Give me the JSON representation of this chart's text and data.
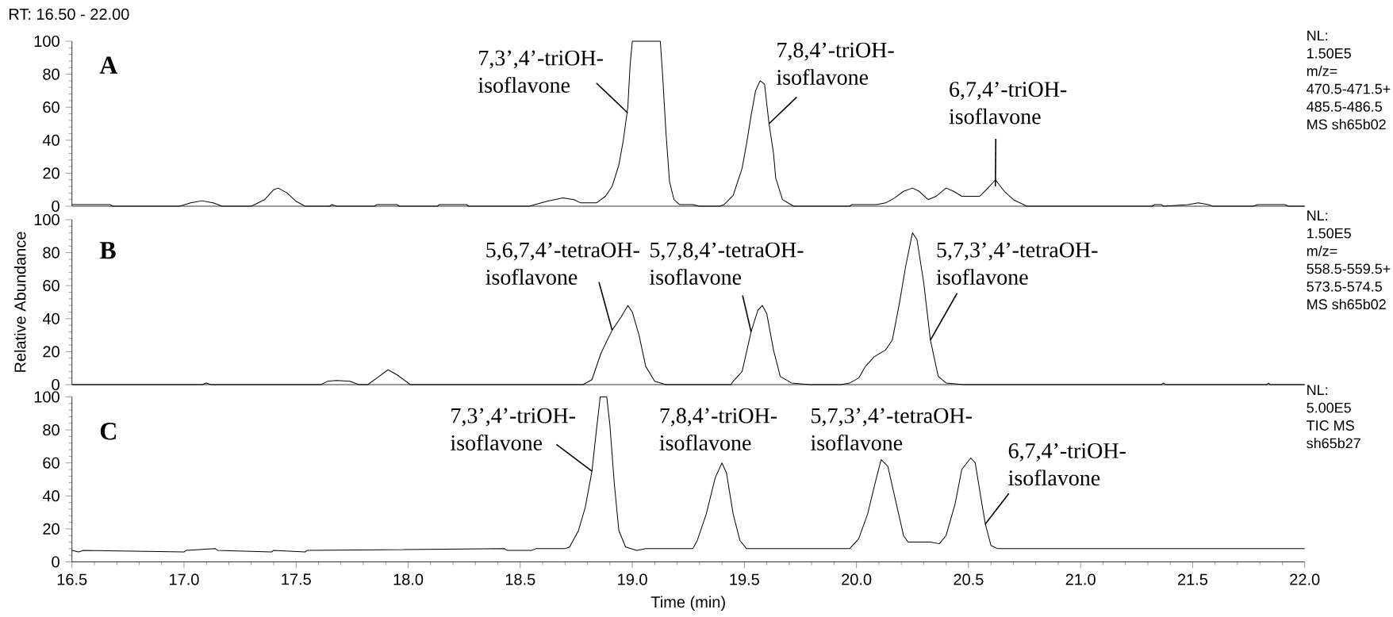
{
  "chart_data": [
    {
      "type": "line",
      "title": "A",
      "color": "#000000",
      "line_style": "solid",
      "tick_labels": "y",
      "x": [
        16.5,
        16.67,
        16.68,
        16.98,
        17.03,
        17.08,
        17.13,
        17.17,
        17.3,
        17.36,
        17.4,
        17.42,
        17.46,
        17.5,
        17.54,
        17.65,
        17.66,
        17.68,
        17.85,
        17.86,
        17.95,
        17.96,
        18.13,
        18.14,
        18.26,
        18.27,
        18.54,
        18.62,
        18.69,
        18.74,
        18.77,
        18.84,
        18.88,
        18.91,
        18.94,
        18.96,
        18.98,
        18.99,
        19.0,
        19.125,
        19.135,
        19.15,
        19.166,
        19.186,
        19.21,
        19.27,
        19.3,
        19.39,
        19.41,
        19.45,
        19.49,
        19.51,
        19.53,
        19.55,
        19.57,
        19.59,
        19.6,
        19.61,
        19.63,
        19.64,
        19.67,
        19.72,
        19.97,
        19.98,
        20.09,
        20.13,
        20.17,
        20.21,
        20.25,
        20.28,
        20.32,
        20.355,
        20.4,
        20.434,
        20.47,
        20.55,
        20.58,
        20.62,
        20.66,
        20.7,
        20.76,
        21.32,
        21.33,
        21.36,
        21.37,
        21.48,
        21.525,
        21.57,
        21.59,
        21.77,
        21.79,
        21.91,
        21.93,
        22.0
      ],
      "values": [
        1,
        1,
        0,
        0,
        2,
        3.3,
        2,
        0,
        0,
        4,
        10,
        11,
        8,
        3,
        0,
        0,
        1,
        0,
        0,
        1,
        1,
        0,
        0,
        1,
        1,
        0,
        0,
        3,
        5,
        4,
        2,
        2,
        6,
        12,
        25,
        40,
        60,
        85,
        100,
        100,
        80,
        45,
        15,
        4,
        1,
        1,
        0,
        0,
        1,
        6.5,
        23,
        38,
        55,
        70,
        76,
        74,
        62,
        50,
        32,
        17,
        4,
        0,
        0,
        1,
        1,
        2,
        5,
        9,
        11,
        9,
        4,
        6,
        11,
        9,
        6,
        6,
        10,
        16,
        9,
        4,
        0,
        0,
        1,
        1,
        0,
        1,
        2,
        1,
        0,
        0,
        1,
        1,
        0,
        0
      ],
      "xlim": [
        16.5,
        22.0
      ],
      "ylim": [
        0,
        100
      ],
      "yticks": [
        0,
        20,
        40,
        60,
        80,
        100
      ],
      "annotations": [
        "RT: 16.50 - 22.00",
        {
          "text": "7,3’,4’-triOH-isoflavone",
          "x": 18.98,
          "y": 56.5
        },
        {
          "text": "7,8,4’-triOH-isoflavone",
          "x": 19.61,
          "y": 50
        },
        {
          "text": "6,7,4’-triOH-isoflavone",
          "x": 20.62,
          "y": 12
        },
        "NL:",
        "1.50E5",
        "m/z=",
        "470.5-471.5+",
        "485.5-486.5",
        "MS sh65b02"
      ]
    },
    {
      "type": "line",
      "title": "B",
      "ylabel": "Relative Abundance",
      "color": "#000000",
      "line_style": "solid",
      "tick_labels": "y",
      "x": [
        16.5,
        17.08,
        17.1,
        17.12,
        17.61,
        17.64,
        17.68,
        17.74,
        17.78,
        17.82,
        17.87,
        17.91,
        17.95,
        18.01,
        18.78,
        18.82,
        18.86,
        18.91,
        18.95,
        18.98,
        19.0,
        19.03,
        19.06,
        19.1,
        19.15,
        19.44,
        19.45,
        19.49,
        19.53,
        19.56,
        19.58,
        19.6,
        19.63,
        19.66,
        19.71,
        19.79,
        19.93,
        19.97,
        20.01,
        20.04,
        20.08,
        20.13,
        20.16,
        20.19,
        20.22,
        20.25,
        20.27,
        20.3,
        20.33,
        20.365,
        20.4,
        20.48,
        21.36,
        21.37,
        21.38,
        21.83,
        21.84,
        21.845,
        22.0
      ],
      "values": [
        0,
        0,
        1,
        0,
        0,
        2,
        2.5,
        2,
        0,
        0,
        5,
        9,
        6,
        0,
        0,
        3,
        19,
        33,
        41,
        48,
        44,
        30,
        11,
        2,
        0,
        0,
        2,
        8,
        32,
        45,
        48,
        43,
        21,
        5,
        1,
        0,
        0,
        1,
        4,
        11,
        17,
        21,
        27,
        48,
        72,
        92,
        88,
        62,
        27,
        5,
        1,
        0,
        0,
        1,
        0,
        0,
        1,
        0,
        0
      ],
      "xlim": [
        16.5,
        22.0
      ],
      "ylim": [
        0,
        100
      ],
      "yticks": [
        0,
        20,
        40,
        60,
        80,
        100
      ],
      "annotations": [
        {
          "text": "5,6,7,4’-tetraOH-isoflavone",
          "x": 18.91,
          "y": 33
        },
        {
          "text": "5,7,8,4’-tetraOH-isoflavone",
          "x": 19.53,
          "y": 32
        },
        {
          "text": "5,7,3’,4’-tetraOH-isoflavone",
          "x": 20.33,
          "y": 27
        },
        "NL:",
        "1.50E5",
        "m/z=",
        "558.5-559.5+",
        "573.5-574.5",
        "MS sh65b02"
      ]
    },
    {
      "type": "line",
      "title": "C",
      "xlabel": "Time (min)",
      "color": "#000000",
      "line_style": "solid",
      "x": [
        16.5,
        16.53,
        16.55,
        17.0,
        17.01,
        17.14,
        17.15,
        17.39,
        17.4,
        17.54,
        17.55,
        18.43,
        18.44,
        18.55,
        18.57,
        18.7,
        18.72,
        18.76,
        18.79,
        18.82,
        18.84,
        18.857,
        18.886,
        18.9,
        18.92,
        18.94,
        18.97,
        19.02,
        19.06,
        19.27,
        19.29,
        19.33,
        19.37,
        19.4,
        19.42,
        19.45,
        19.48,
        19.51,
        19.59,
        19.97,
        20.01,
        20.05,
        20.08,
        20.11,
        20.14,
        20.17,
        20.21,
        20.23,
        20.33,
        20.37,
        20.4,
        20.44,
        20.47,
        20.51,
        20.53,
        20.56,
        20.575,
        20.6,
        20.63,
        22.0
      ],
      "values": [
        7,
        6,
        7,
        6,
        7,
        8,
        7,
        6,
        7,
        6,
        7,
        8,
        7,
        7,
        8,
        8,
        9,
        19,
        33,
        55,
        80,
        100,
        100,
        83,
        47,
        19,
        9,
        7,
        8,
        8,
        13,
        29,
        51,
        60,
        54,
        29,
        13,
        8,
        8,
        8,
        14,
        29,
        46,
        62,
        58,
        40,
        16,
        12,
        12,
        11,
        16,
        35,
        56,
        63,
        60,
        35,
        23,
        10,
        8,
        8
      ],
      "xlim": [
        16.5,
        22.0
      ],
      "ylim": [
        0,
        100
      ],
      "yticks": [
        0,
        20,
        40,
        60,
        80,
        100
      ],
      "xticks": [
        16.5,
        {
          "value": 17,
          "label": "17.0"
        },
        17.5,
        {
          "value": 18,
          "label": "18.0"
        },
        18.5,
        {
          "value": 19,
          "label": "19.0"
        },
        19.5,
        {
          "value": 20,
          "label": "20.0"
        },
        20.5,
        {
          "value": 21,
          "label": "21.0"
        },
        21.5,
        {
          "value": 22,
          "label": "22.0"
        }
      ],
      "annotations": [
        {
          "text": "7,3’,4’-triOH-isoflavone",
          "x": 18.82,
          "y": 55
        },
        "7,8,4’-triOH-isoflavone",
        "5,7,3’,4’-tetraOH-isoflavone",
        {
          "text": "6,7,4’-triOH-isoflavone",
          "x": 20.575,
          "y": 23
        },
        "NL:",
        "5.00E5",
        "TIC MS",
        "sh65b27"
      ]
    }
  ]
}
